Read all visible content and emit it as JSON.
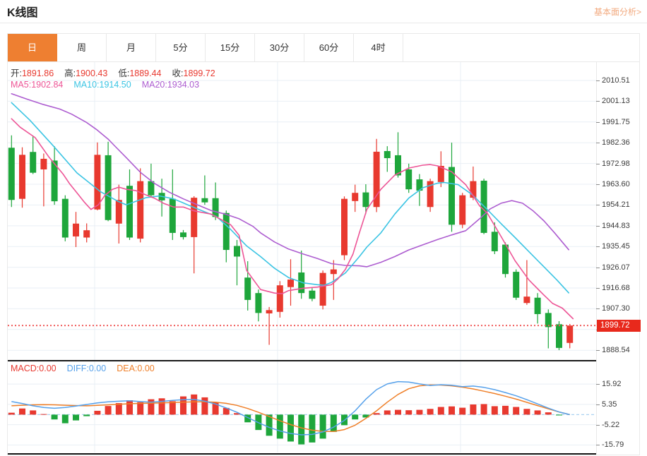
{
  "header": {
    "title": "K线图",
    "link": "基本面分析>"
  },
  "tabs": {
    "items": [
      "日",
      "周",
      "月",
      "5分",
      "15分",
      "30分",
      "60分",
      "4时"
    ],
    "active": "日"
  },
  "legend_ohlc": [
    {
      "label": "开:",
      "value": "1891.86"
    },
    {
      "label": "高:",
      "value": "1900.43"
    },
    {
      "label": "低:",
      "value": "1889.44"
    },
    {
      "label": "收:",
      "value": "1899.72"
    }
  ],
  "legend_ma": [
    {
      "label": "MA5:",
      "value": "1902.84",
      "color": "#ed5596"
    },
    {
      "label": "MA10:",
      "value": "1914.50",
      "color": "#3bc4e3"
    },
    {
      "label": "MA20:",
      "value": "1934.03",
      "color": "#ad5dd0"
    }
  ],
  "legend_macd": [
    {
      "label": "MACD:",
      "value": "0.00",
      "color": "#e8392f"
    },
    {
      "label": "DIFF:",
      "value": "0.00",
      "color": "#55a0ea"
    },
    {
      "label": "DEA:",
      "value": "0.00",
      "color": "#ef7f28"
    }
  ],
  "price_tag": "1899.72",
  "colors": {
    "up": "#e8392f",
    "down": "#1ea63b",
    "ma5": "#ed5596",
    "ma10": "#3bc4e3",
    "ma20": "#ad5dd0",
    "diff": "#55a0ea",
    "dea": "#ef7f28",
    "accent_tab": "#ee7f31",
    "ohlc_value": "#e8392f",
    "price_line": "#f05b5b",
    "price_tag_bg": "#e8291c",
    "grid": "#e9eff5",
    "zero_line": "#aad2f2"
  },
  "chart_data": {
    "type": "candlestick",
    "period": "日",
    "y_axis_labels": [
      2010.51,
      2001.13,
      1991.75,
      1982.36,
      1972.98,
      1963.6,
      1954.21,
      1944.83,
      1935.45,
      1926.07,
      1916.68,
      1907.3,
      1897.92,
      1888.54
    ],
    "current_price": 1899.72,
    "candles_ohlc": [
      [
        1980.1,
        1985.7,
        1953.3,
        1956.5
      ],
      [
        1957.0,
        1980.3,
        1953.0,
        1976.9
      ],
      [
        1978.2,
        1985.2,
        1968.2,
        1968.8
      ],
      [
        1970.3,
        1977.5,
        1953.6,
        1975.1
      ],
      [
        1974.3,
        1980.8,
        1954.3,
        1955.9
      ],
      [
        1957.0,
        1958.6,
        1937.8,
        1939.5
      ],
      [
        1940.0,
        1951.1,
        1935.2,
        1945.8
      ],
      [
        1939.5,
        1945.9,
        1937.3,
        1942.8
      ],
      [
        1952.2,
        1982.5,
        1951.8,
        1976.9
      ],
      [
        1976.7,
        1982.8,
        1946.9,
        1947.4
      ],
      [
        1945.8,
        1963.4,
        1936.8,
        1956.5
      ],
      [
        1962.9,
        1970.3,
        1938.4,
        1939.5
      ],
      [
        1939.0,
        1970.8,
        1937.3,
        1965.0
      ],
      [
        1965.0,
        1972.9,
        1957.5,
        1958.6
      ],
      [
        1959.7,
        1966.1,
        1949.0,
        1956.3
      ],
      [
        1957.0,
        1970.3,
        1938.4,
        1941.6
      ],
      [
        1941.8,
        1942.9,
        1938.6,
        1939.7
      ],
      [
        1939.7,
        1958.2,
        1923.3,
        1957.5
      ],
      [
        1957.3,
        1967.6,
        1954.3,
        1955.4
      ],
      [
        1957.3,
        1964.4,
        1947.4,
        1948.8
      ],
      [
        1950.6,
        1951.7,
        1928.3,
        1933.9
      ],
      [
        1935.7,
        1938.4,
        1917.9,
        1930.9
      ],
      [
        1921.4,
        1928.8,
        1906.5,
        1911.3
      ],
      [
        1914.4,
        1916.0,
        1901.6,
        1905.4
      ],
      [
        1905.2,
        1908.1,
        1891.0,
        1906.7
      ],
      [
        1905.9,
        1919.8,
        1903.3,
        1917.9
      ],
      [
        1917.1,
        1929.7,
        1908.7,
        1920.5
      ],
      [
        1923.7,
        1933.6,
        1911.8,
        1914.4
      ],
      [
        1915.5,
        1916.6,
        1910.7,
        1911.8
      ],
      [
        1908.7,
        1924.6,
        1907.0,
        1923.5
      ],
      [
        1923.0,
        1929.3,
        1911.3,
        1925.1
      ],
      [
        1931.5,
        1958.1,
        1929.3,
        1957.0
      ],
      [
        1956.0,
        1963.4,
        1951.1,
        1959.7
      ],
      [
        1959.9,
        1963.6,
        1950.1,
        1953.3
      ],
      [
        1953.3,
        1984.1,
        1951.0,
        1978.3
      ],
      [
        1978.6,
        1980.8,
        1969.2,
        1975.4
      ],
      [
        1976.7,
        1987.1,
        1966.6,
        1967.6
      ],
      [
        1970.3,
        1972.9,
        1959.7,
        1961.3
      ],
      [
        1965.8,
        1968.2,
        1953.8,
        1960.7
      ],
      [
        1953.3,
        1966.1,
        1951.1,
        1965.0
      ],
      [
        1964.6,
        1978.5,
        1962.3,
        1971.9
      ],
      [
        1971.4,
        1982.4,
        1942.1,
        1945.3
      ],
      [
        1945.3,
        1959.7,
        1943.7,
        1958.6
      ],
      [
        1957.5,
        1971.6,
        1956.4,
        1965.0
      ],
      [
        1965.2,
        1966.1,
        1941.0,
        1941.6
      ],
      [
        1942.1,
        1946.4,
        1932.0,
        1933.3
      ],
      [
        1936.3,
        1937.3,
        1921.4,
        1923.0
      ],
      [
        1924.0,
        1925.1,
        1911.3,
        1912.3
      ],
      [
        1909.9,
        1929.3,
        1909.1,
        1912.8
      ],
      [
        1912.3,
        1914.4,
        1900.6,
        1904.9
      ],
      [
        1905.4,
        1907.0,
        1889.4,
        1899.0
      ],
      [
        1900.3,
        1901.7,
        1888.6,
        1889.6
      ],
      [
        1891.86,
        1900.43,
        1889.44,
        1899.72
      ]
    ],
    "ma5_points": [
      [
        0,
        1993.2
      ],
      [
        0.8,
        1989.4
      ],
      [
        2.2,
        1984.7
      ],
      [
        3.5,
        1975.8
      ],
      [
        4.8,
        1968.2
      ],
      [
        5.4,
        1963.9
      ],
      [
        6.1,
        1959.7
      ],
      [
        6.8,
        1955.4
      ],
      [
        7.4,
        1952.2
      ],
      [
        8.1,
        1954.3
      ],
      [
        8.7,
        1958.6
      ],
      [
        9.4,
        1961.3
      ],
      [
        10,
        1962.3
      ],
      [
        10.7,
        1961.3
      ],
      [
        11.6,
        1960.7
      ],
      [
        12.5,
        1958.8
      ],
      [
        13.3,
        1957.3
      ],
      [
        14.2,
        1954.9
      ],
      [
        15.1,
        1953.3
      ],
      [
        16,
        1953.3
      ],
      [
        16.9,
        1951.7
      ],
      [
        17.7,
        1950.9
      ],
      [
        18.6,
        1950.1
      ],
      [
        19.5,
        1947.7
      ],
      [
        20.4,
        1945.3
      ],
      [
        21.2,
        1940.5
      ],
      [
        21.9,
        1924.6
      ],
      [
        23.2,
        1916.0
      ],
      [
        24.5,
        1914.4
      ],
      [
        25.2,
        1914.1
      ],
      [
        25.8,
        1915.5
      ],
      [
        27.2,
        1916.6
      ],
      [
        28.5,
        1917.1
      ],
      [
        29.8,
        1918.2
      ],
      [
        30.4,
        1920.8
      ],
      [
        31.1,
        1925.1
      ],
      [
        31.8,
        1932.0
      ],
      [
        32.4,
        1941.6
      ],
      [
        33.1,
        1952.2
      ],
      [
        34.4,
        1961.3
      ],
      [
        35.7,
        1967.7
      ],
      [
        37,
        1970.9
      ],
      [
        38.3,
        1972.2
      ],
      [
        39,
        1972.5
      ],
      [
        39.7,
        1971.9
      ],
      [
        41,
        1969.2
      ],
      [
        42.3,
        1963.4
      ],
      [
        42.9,
        1959.1
      ],
      [
        43.6,
        1953.8
      ],
      [
        44.3,
        1950.6
      ],
      [
        45.6,
        1940.0
      ],
      [
        46.9,
        1929.0
      ],
      [
        48.2,
        1920.3
      ],
      [
        49.5,
        1913.9
      ],
      [
        50.4,
        1909.7
      ],
      [
        51.3,
        1907.6
      ],
      [
        52.3,
        1902.8
      ]
    ],
    "ma10_points": [
      [
        0,
        2000.5
      ],
      [
        1.7,
        1992.6
      ],
      [
        3.9,
        1980.9
      ],
      [
        6.1,
        1968.7
      ],
      [
        8.3,
        1960.2
      ],
      [
        9.9,
        1955.9
      ],
      [
        10.7,
        1954.3
      ],
      [
        12.5,
        1957.5
      ],
      [
        13.8,
        1958.3
      ],
      [
        15.1,
        1957.0
      ],
      [
        16.4,
        1954.3
      ],
      [
        17.7,
        1951.7
      ],
      [
        19.1,
        1949.0
      ],
      [
        20.4,
        1943.2
      ],
      [
        21.9,
        1935.7
      ],
      [
        23.2,
        1930.9
      ],
      [
        24.5,
        1925.6
      ],
      [
        25.8,
        1921.4
      ],
      [
        27.2,
        1919.0
      ],
      [
        28.5,
        1918.2
      ],
      [
        29.1,
        1917.9
      ],
      [
        29.8,
        1919.2
      ],
      [
        31.1,
        1923.5
      ],
      [
        32.4,
        1930.9
      ],
      [
        33.1,
        1935.2
      ],
      [
        34.4,
        1941.6
      ],
      [
        35.7,
        1950.1
      ],
      [
        37,
        1957.3
      ],
      [
        38.3,
        1962.0
      ],
      [
        39.7,
        1964.1
      ],
      [
        40.3,
        1964.4
      ],
      [
        41.6,
        1963.4
      ],
      [
        42.9,
        1958.9
      ],
      [
        44.3,
        1952.2
      ],
      [
        45.6,
        1945.8
      ],
      [
        46.9,
        1939.5
      ],
      [
        48.2,
        1933.1
      ],
      [
        49.5,
        1926.7
      ],
      [
        50.8,
        1920.3
      ],
      [
        51.9,
        1914.5
      ]
    ],
    "ma20_points": [
      [
        0,
        2004.5
      ],
      [
        1.5,
        2002.0
      ],
      [
        3,
        1999.6
      ],
      [
        4.5,
        1997.6
      ],
      [
        5.6,
        1995.3
      ],
      [
        7,
        1991.5
      ],
      [
        7.9,
        1988.4
      ],
      [
        9,
        1984.0
      ],
      [
        9.6,
        1981.0
      ],
      [
        10.7,
        1975.6
      ],
      [
        12,
        1969.0
      ],
      [
        13.3,
        1964.0
      ],
      [
        14.7,
        1960.0
      ],
      [
        16,
        1957.0
      ],
      [
        17.3,
        1954.3
      ],
      [
        18.6,
        1951.7
      ],
      [
        19.9,
        1950.1
      ],
      [
        21.2,
        1948.0
      ],
      [
        22.5,
        1944.5
      ],
      [
        23.2,
        1941.6
      ],
      [
        24.5,
        1937.5
      ],
      [
        25.8,
        1934.3
      ],
      [
        27.2,
        1932.0
      ],
      [
        28.5,
        1930.0
      ],
      [
        29.8,
        1927.7
      ],
      [
        31.1,
        1926.9
      ],
      [
        32.4,
        1926.7
      ],
      [
        33.1,
        1926.3
      ],
      [
        34.4,
        1928.3
      ],
      [
        35.7,
        1930.9
      ],
      [
        37,
        1933.9
      ],
      [
        38.3,
        1936.2
      ],
      [
        39.7,
        1938.6
      ],
      [
        41,
        1940.7
      ],
      [
        42.3,
        1942.6
      ],
      [
        43.6,
        1948.0
      ],
      [
        44.6,
        1952.5
      ],
      [
        45.6,
        1955.0
      ],
      [
        46.6,
        1956.2
      ],
      [
        47.6,
        1955.0
      ],
      [
        48.6,
        1951.5
      ],
      [
        49.6,
        1947.0
      ],
      [
        50.6,
        1941.5
      ],
      [
        51.9,
        1934.0
      ]
    ],
    "macd": {
      "type": "bar",
      "y_axis_labels": [
        15.92,
        5.35,
        -5.22,
        -15.79
      ],
      "hist": [
        1.0,
        3.2,
        2.2,
        0.3,
        -2.5,
        -4.5,
        -3.0,
        -0.8,
        2.0,
        4.5,
        6.0,
        7.5,
        6.5,
        8.0,
        8.5,
        7.0,
        9.5,
        10.5,
        9.0,
        6.5,
        3.5,
        0.8,
        -4.0,
        -8.0,
        -11.0,
        -12.5,
        -14.0,
        -15.5,
        -14.5,
        -12.5,
        -9.0,
        -5.5,
        -2.5,
        -1.5,
        0.8,
        2.2,
        2.5,
        2.3,
        2.5,
        3.0,
        4.0,
        4.3,
        3.6,
        5.3,
        5.5,
        4.4,
        4.6,
        4.0,
        3.0,
        2.2,
        1.2,
        -0.4,
        0.0
      ],
      "diff": [
        6.8,
        5.8,
        4.6,
        3.7,
        3.3,
        3.7,
        4.5,
        5.3,
        6.1,
        6.7,
        7.0,
        7.2,
        6.8,
        6.5,
        6.9,
        7.4,
        7.8,
        7.9,
        7.0,
        5.5,
        3.5,
        1.2,
        -1.5,
        -4.2,
        -6.6,
        -8.5,
        -9.8,
        -10.5,
        -10.3,
        -9.0,
        -6.5,
        -3.0,
        2.0,
        8.0,
        13.0,
        16.0,
        17.2,
        17.0,
        16.0,
        15.2,
        15.6,
        15.3,
        14.6,
        14.9,
        14.2,
        13.0,
        11.5,
        9.8,
        7.8,
        5.6,
        3.4,
        1.4,
        0.0
      ],
      "dea": [
        4.6,
        4.9,
        5.1,
        5.2,
        5.1,
        4.9,
        4.7,
        4.6,
        4.8,
        5.1,
        5.4,
        5.7,
        5.9,
        6.0,
        6.1,
        6.3,
        6.5,
        6.7,
        6.7,
        6.5,
        5.9,
        4.8,
        3.2,
        1.2,
        -1.0,
        -3.2,
        -5.2,
        -6.9,
        -8.1,
        -8.8,
        -8.8,
        -7.8,
        -5.5,
        -2.0,
        2.0,
        6.5,
        10.5,
        13.5,
        15.0,
        15.5,
        15.4,
        15.0,
        14.3,
        13.4,
        12.2,
        11.0,
        9.6,
        8.1,
        6.4,
        4.7,
        3.0,
        1.4,
        0.0
      ]
    }
  }
}
